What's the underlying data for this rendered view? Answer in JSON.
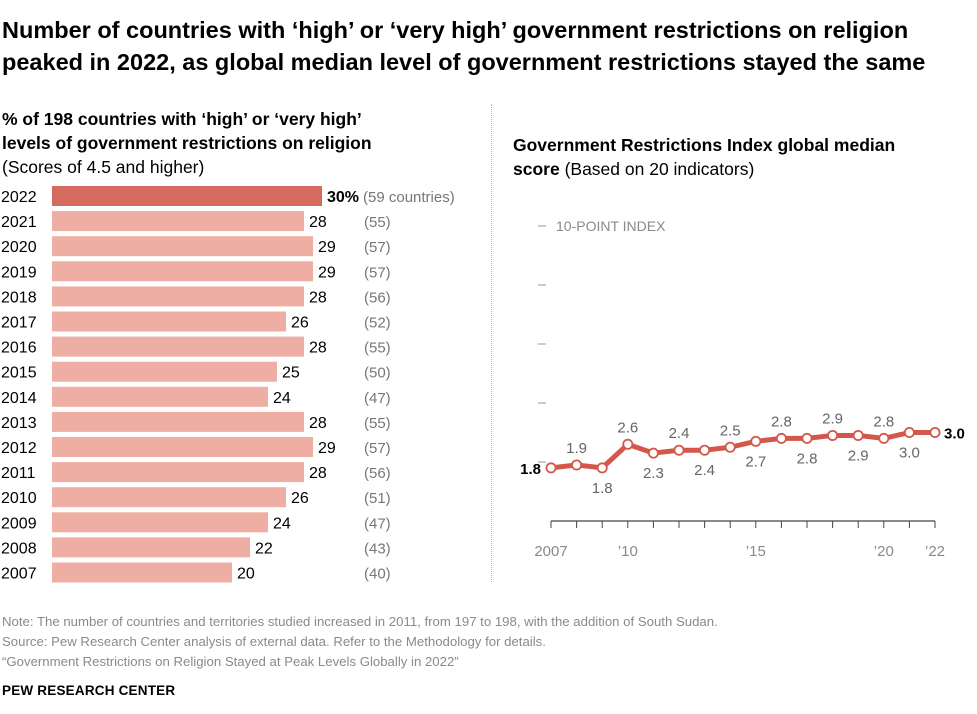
{
  "title": "Number of countries with ‘high’ or ‘very high’ government restrictions on religion peaked in 2022, as global median level of government restrictions stayed the same",
  "left_panel": {
    "subtitle_bold_1": "% of 198 countries with ‘high’ or ‘very high’",
    "subtitle_bold_2": "levels of government restrictions on religion",
    "subtitle_note": "(Scores of 4.5 and higher)"
  },
  "right_panel": {
    "subtitle_bold_1": "Government Restrictions Index global median",
    "subtitle_bold_2": "score",
    "subtitle_note": "(Based on 20 indicators)",
    "index_label": "10-POINT INDEX"
  },
  "colors": {
    "bar_highlight": "#d56a5e",
    "bar_normal": "#efaea3",
    "line": "#d4574b",
    "axis": "#444444",
    "muted_text": "#8a8a8a"
  },
  "chart_data": [
    {
      "type": "bar",
      "orientation": "horizontal",
      "categories": [
        "2022",
        "2021",
        "2020",
        "2019",
        "2018",
        "2017",
        "2016",
        "2015",
        "2014",
        "2013",
        "2012",
        "2011",
        "2010",
        "2009",
        "2008",
        "2007"
      ],
      "values": [
        30,
        28,
        29,
        29,
        28,
        26,
        28,
        25,
        24,
        28,
        29,
        28,
        26,
        24,
        22,
        20
      ],
      "value_labels": [
        "30%",
        "28",
        "29",
        "29",
        "28",
        "26",
        "28",
        "25",
        "24",
        "28",
        "29",
        "28",
        "26",
        "24",
        "22",
        "20"
      ],
      "counts": [
        "(59 countries)",
        "(55)",
        "(57)",
        "(57)",
        "(56)",
        "(52)",
        "(55)",
        "(50)",
        "(47)",
        "(55)",
        "(57)",
        "(56)",
        "(51)",
        "(47)",
        "(43)",
        "(40)"
      ],
      "highlight_category": "2022",
      "unit": "%"
    },
    {
      "type": "line",
      "x": [
        2007,
        2008,
        2009,
        2010,
        2011,
        2012,
        2013,
        2014,
        2015,
        2016,
        2017,
        2018,
        2019,
        2020,
        2021,
        2022
      ],
      "values": [
        1.8,
        1.9,
        1.8,
        2.6,
        2.3,
        2.4,
        2.4,
        2.5,
        2.7,
        2.8,
        2.8,
        2.9,
        2.9,
        2.8,
        3.0,
        3.0
      ],
      "data_labels": [
        "1.8",
        "1.9",
        "1.8",
        "2.6",
        "2.3",
        "2.4",
        "2.4",
        "2.5",
        "2.7",
        "2.8",
        "2.8",
        "2.9",
        "2.9",
        "2.8",
        "3.0",
        "3.0"
      ],
      "x_tick_labels": [
        "2007",
        "’10",
        "’15",
        "’20",
        "’22"
      ],
      "x_tick_years": [
        2007,
        2010,
        2015,
        2020,
        2022
      ],
      "ylim": [
        0,
        10
      ],
      "y_ticks": [
        2,
        4,
        6,
        8,
        10
      ]
    }
  ],
  "footer": {
    "note": "Note: The number of countries and territories studied increased in 2011, from 197 to 198, with the addition of South Sudan.",
    "source": "Source: Pew Research Center analysis of external data. Refer to the Methodology for details.",
    "report": "“Government Restrictions on Religion Stayed at Peak Levels Globally in 2022”",
    "brand": "PEW RESEARCH CENTER"
  }
}
